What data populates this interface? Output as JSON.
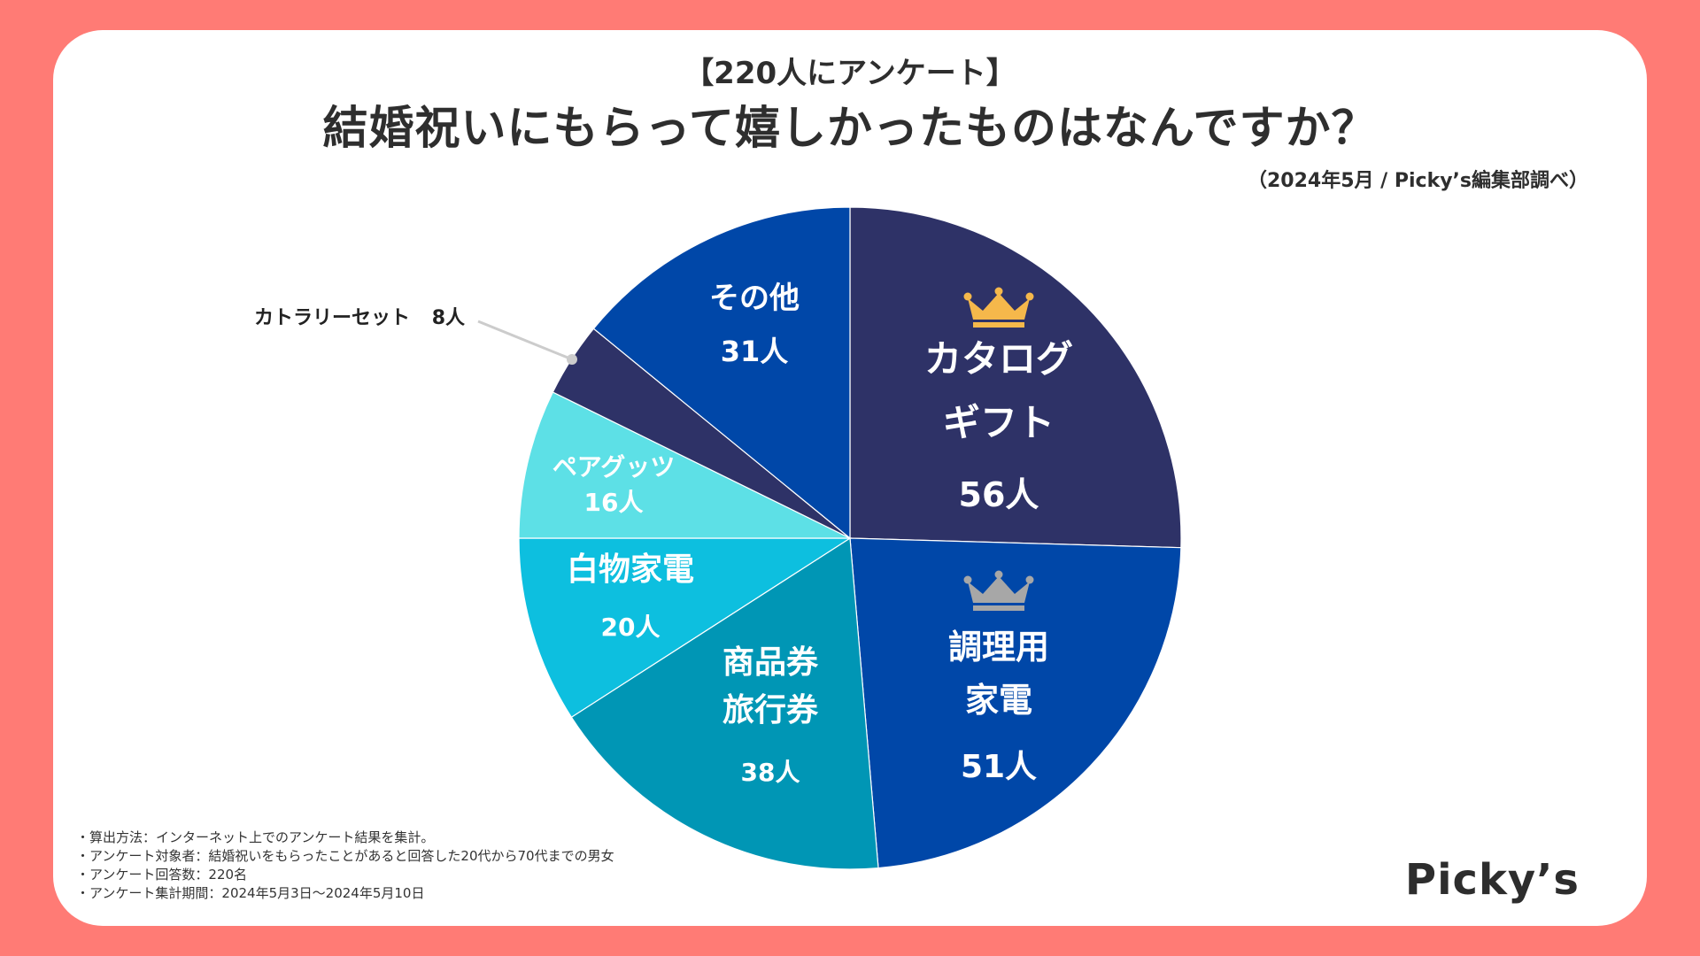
{
  "header": {
    "survey_tag": "【220人にアンケート】",
    "title": "結婚祝いにもらって嬉しかったものはなんですか？",
    "source": "（2024年5月 / Picky’s編集部調べ）"
  },
  "notes": [
    "・算出方法：インターネット上でのアンケート結果を集計。",
    "・アンケート対象者：結婚祝いをもらったことがあると回答した20代から70代までの男女",
    "・アンケート回答数：220名",
    "・アンケート集計期間：2024年5月3日〜2024年5月10日"
  ],
  "logo": "Picky’s",
  "colors": {
    "background": "#FF7B75",
    "card": "#FFFFFF",
    "gold_crown": "#F5B84B",
    "silver_crown": "#A7A7A7"
  },
  "chart_data": {
    "type": "pie",
    "title": "結婚祝いにもらって嬉しかったものはなんですか？",
    "total": 220,
    "unit": "人",
    "start": "12 o'clock",
    "direction": "clockwise",
    "slices": [
      {
        "lines": [
          "カタログ",
          "ギフト"
        ],
        "value": 56,
        "value_label": "56人",
        "color": "#2E3267",
        "rank": 1
      },
      {
        "lines": [
          "調理用",
          "家電"
        ],
        "value": 51,
        "value_label": "51人",
        "color": "#0047A8",
        "rank": 2
      },
      {
        "lines": [
          "商品券",
          "旅行券"
        ],
        "value": 38,
        "value_label": "38人",
        "color": "#0096B5"
      },
      {
        "lines": [
          "白物家電"
        ],
        "value": 20,
        "value_label": "20人",
        "color": "#0DBFDF"
      },
      {
        "lines": [
          "ペアグッツ"
        ],
        "value": 16,
        "value_label": "16人",
        "color": "#5DE0E6"
      },
      {
        "lines": [
          "カトラリーセット"
        ],
        "value": 8,
        "value_label": "8人",
        "color": "#2E3267",
        "external": true
      },
      {
        "lines": [
          "その他"
        ],
        "value": 31,
        "value_label": "31人",
        "color": "#0047A8"
      }
    ]
  }
}
